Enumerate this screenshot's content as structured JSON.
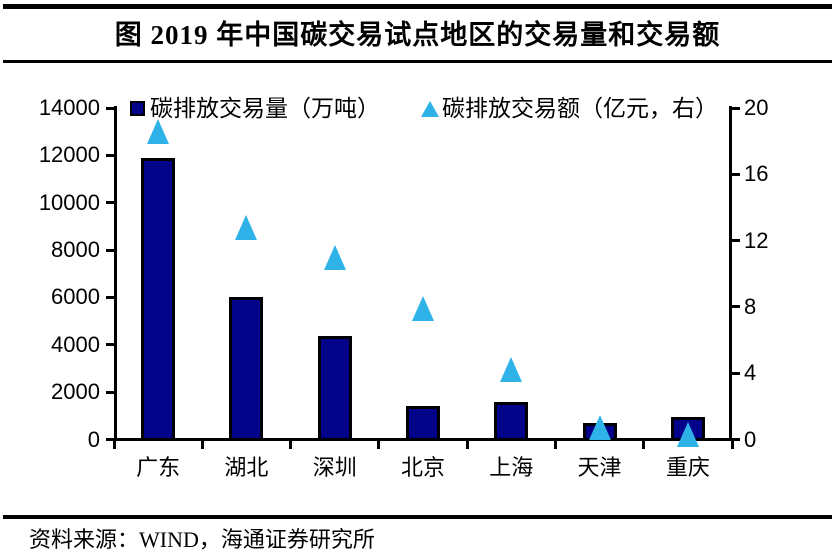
{
  "header": {
    "title": "图  2019 年中国碳交易试点地区的交易量和交易额"
  },
  "footer": {
    "source": "资料来源：WIND，海通证券研究所"
  },
  "colors": {
    "bar_fill": "#04048A",
    "bar_border": "#000000",
    "triangle_fill": "#2EB2E8",
    "axis": "#000000",
    "text": "#000000",
    "background": "#FFFFFF"
  },
  "chart_data": {
    "type": "bar",
    "title": "2019 年中国碳交易试点地区的交易量和交易额",
    "categories": [
      "广东",
      "湖北",
      "深圳",
      "北京",
      "上海",
      "天津",
      "重庆"
    ],
    "series": [
      {
        "name": "碳排放交易量（万吨）",
        "type": "bar",
        "axis": "left",
        "marker": "square",
        "color": "#04048A",
        "values": [
          11900,
          6000,
          4350,
          1400,
          1600,
          680,
          950
        ]
      },
      {
        "name": "碳排放交易额（亿元，右）",
        "type": "scatter",
        "axis": "right",
        "marker": "triangle",
        "color": "#2EB2E8",
        "values": [
          18.6,
          12.8,
          11.0,
          7.9,
          4.2,
          0.7,
          0.3
        ]
      }
    ],
    "left_axis": {
      "label": "万吨",
      "min": 0,
      "max": 14000,
      "step": 2000,
      "ticks": [
        0,
        2000,
        4000,
        6000,
        8000,
        10000,
        12000,
        14000
      ]
    },
    "right_axis": {
      "label": "亿元",
      "min": 0,
      "max": 20,
      "step": 4,
      "ticks": [
        0,
        4,
        8,
        12,
        16,
        20
      ]
    },
    "grid": false,
    "legend_position": "top-inside"
  }
}
